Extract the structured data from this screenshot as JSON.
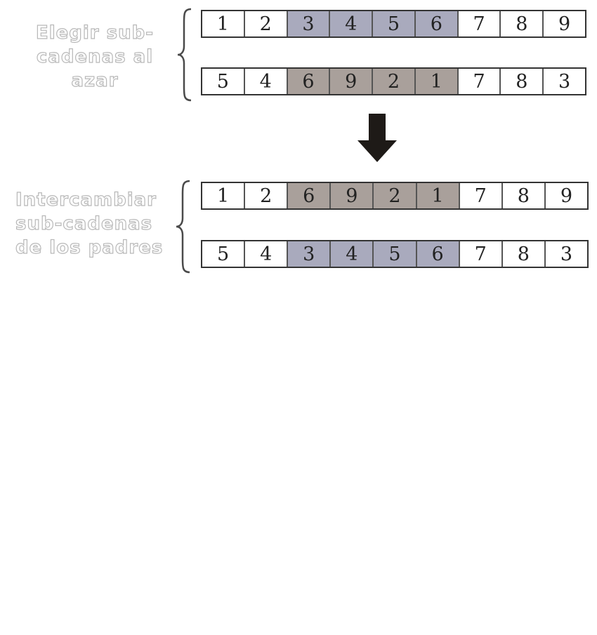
{
  "labels": {
    "top": [
      "Elegir sub-",
      "cadenas al",
      "azar"
    ],
    "bottom": [
      "Intercambiar",
      "sub-cadenas",
      "de los padres"
    ]
  },
  "colors": {
    "white": "#ffffff",
    "blue": "#a9aabd",
    "brown": "#a9a09b"
  },
  "rows": [
    {
      "name": "parent-1",
      "cells": [
        {
          "v": "1",
          "c": "white"
        },
        {
          "v": "2",
          "c": "white"
        },
        {
          "v": "3",
          "c": "blue"
        },
        {
          "v": "4",
          "c": "blue"
        },
        {
          "v": "5",
          "c": "blue"
        },
        {
          "v": "6",
          "c": "blue"
        },
        {
          "v": "7",
          "c": "white"
        },
        {
          "v": "8",
          "c": "white"
        },
        {
          "v": "9",
          "c": "white"
        }
      ]
    },
    {
      "name": "parent-2",
      "cells": [
        {
          "v": "5",
          "c": "white"
        },
        {
          "v": "4",
          "c": "white"
        },
        {
          "v": "6",
          "c": "brown"
        },
        {
          "v": "9",
          "c": "brown"
        },
        {
          "v": "2",
          "c": "brown"
        },
        {
          "v": "1",
          "c": "brown"
        },
        {
          "v": "7",
          "c": "white"
        },
        {
          "v": "8",
          "c": "white"
        },
        {
          "v": "3",
          "c": "white"
        }
      ]
    },
    {
      "name": "child-1",
      "cells": [
        {
          "v": "1",
          "c": "white"
        },
        {
          "v": "2",
          "c": "white"
        },
        {
          "v": "6",
          "c": "brown"
        },
        {
          "v": "9",
          "c": "brown"
        },
        {
          "v": "2",
          "c": "brown"
        },
        {
          "v": "1",
          "c": "brown"
        },
        {
          "v": "7",
          "c": "white"
        },
        {
          "v": "8",
          "c": "white"
        },
        {
          "v": "9",
          "c": "white"
        }
      ]
    },
    {
      "name": "child-2",
      "cells": [
        {
          "v": "5",
          "c": "white"
        },
        {
          "v": "4",
          "c": "white"
        },
        {
          "v": "3",
          "c": "blue"
        },
        {
          "v": "4",
          "c": "blue"
        },
        {
          "v": "5",
          "c": "blue"
        },
        {
          "v": "6",
          "c": "blue"
        },
        {
          "v": "7",
          "c": "white"
        },
        {
          "v": "8",
          "c": "white"
        },
        {
          "v": "3",
          "c": "white"
        }
      ]
    }
  ]
}
